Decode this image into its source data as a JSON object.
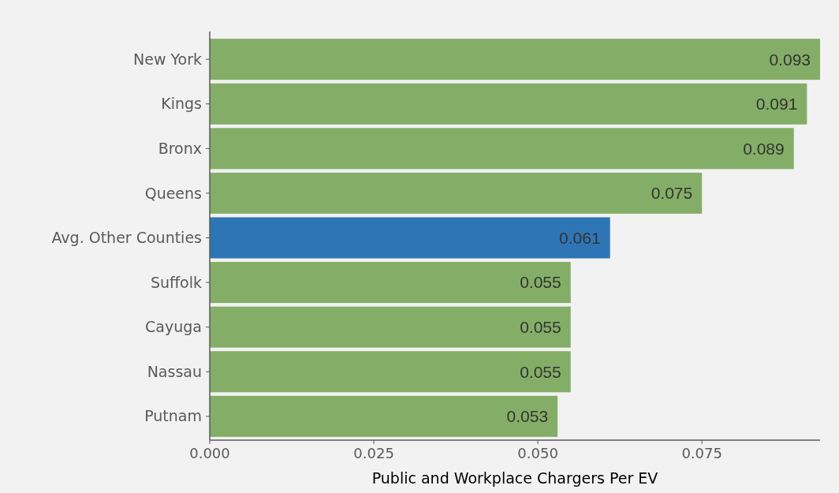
{
  "chart_data": {
    "type": "bar",
    "orientation": "horizontal",
    "xlabel": "Public and Workplace Chargers Per EV",
    "categories": [
      "New York",
      "Kings",
      "Bronx",
      "Queens",
      "Avg. Other Counties",
      "Suffolk",
      "Cayuga",
      "Nassau",
      "Putnam"
    ],
    "values": [
      0.093,
      0.091,
      0.089,
      0.075,
      0.061,
      0.055,
      0.055,
      0.055,
      0.053
    ],
    "colors": [
      "#84ae67",
      "#84ae67",
      "#84ae67",
      "#84ae67",
      "#2e75b6",
      "#84ae67",
      "#84ae67",
      "#84ae67",
      "#84ae67"
    ],
    "xlim": [
      0,
      0.093
    ],
    "xticks": [
      {
        "value": 0,
        "label": "0.000"
      },
      {
        "value": 0.025,
        "label": "0.025"
      },
      {
        "value": 0.05,
        "label": "0.050"
      },
      {
        "value": 0.075,
        "label": "0.075"
      }
    ],
    "data_labels": true
  }
}
